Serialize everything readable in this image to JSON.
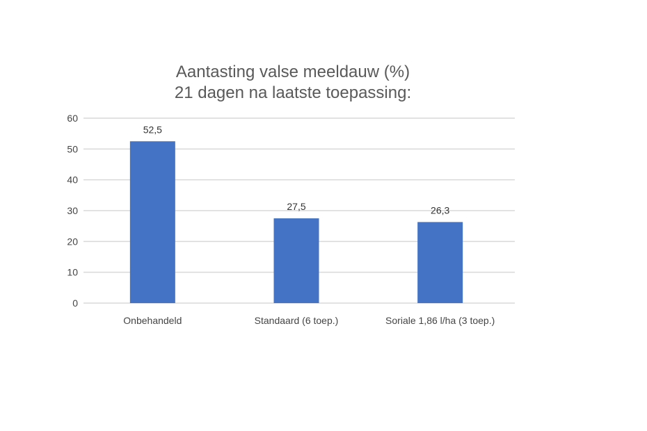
{
  "chart_data": {
    "type": "bar",
    "title": [
      "Aantasting valse meeldauw (%)",
      "21 dagen na laatste toepassing:"
    ],
    "xlabel": "",
    "ylabel": "",
    "categories": [
      "Onbehandeld",
      "Standaard (6 toep.)",
      "Soriale 1,86 l/ha (3 toep.)"
    ],
    "values": [
      52.5,
      27.5,
      26.3
    ],
    "data_labels": [
      "52,5",
      "27,5",
      "26,3"
    ],
    "ylim": [
      0,
      60
    ],
    "yticks": [
      0,
      10,
      20,
      30,
      40,
      50,
      60
    ],
    "grid": true,
    "legend": "none",
    "colors": {
      "bar": "#4472c4",
      "grid": "#d9d9d9",
      "title": "#595959"
    }
  }
}
